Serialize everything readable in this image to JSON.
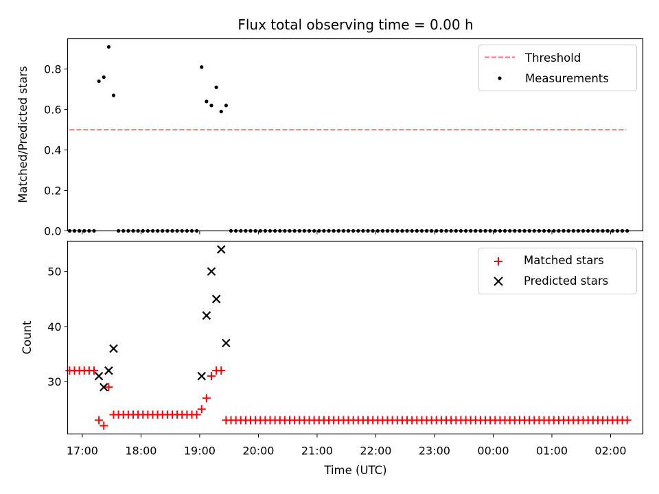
{
  "figure": {
    "title": "Flux total observing time = 0.00 h",
    "xlabel": "Time (UTC)"
  },
  "chart_data": [
    {
      "type": "scatter",
      "ylabel": "Matched/Predicted stars",
      "xlim": [
        "16:45",
        "02:33"
      ],
      "ylim": [
        0,
        0.95
      ],
      "yticks": [
        0.0,
        0.2,
        0.4,
        0.6,
        0.8
      ],
      "ytick_labels": [
        "0.0",
        "0.2",
        "0.4",
        "0.6",
        "0.8"
      ],
      "legend": {
        "position": "top-right"
      },
      "threshold": {
        "name": "Threshold",
        "value": 0.5,
        "x_start": "16:47",
        "x_end": "02:16",
        "color": "#ff7070",
        "style": "dashed"
      },
      "series": [
        {
          "name": "Measurements",
          "marker": "dot",
          "color": "#000000",
          "x": [
            "16:47",
            "16:52",
            "16:57",
            "17:02",
            "17:07",
            "17:12",
            "17:17",
            "17:22",
            "17:27",
            "17:32",
            "17:37",
            "17:42",
            "17:47",
            "17:52",
            "17:57",
            "18:02",
            "18:07",
            "18:12",
            "18:17",
            "18:22",
            "18:27",
            "18:32",
            "18:37",
            "18:42",
            "18:47",
            "18:52",
            "18:57",
            "19:02",
            "19:07",
            "19:12",
            "19:17",
            "19:22",
            "19:27",
            "19:32",
            "19:37",
            "19:42",
            "19:47",
            "19:52",
            "19:57",
            "20:02",
            "20:07",
            "20:12",
            "20:17",
            "20:22",
            "20:27",
            "20:32",
            "20:37",
            "20:42",
            "20:47",
            "20:52",
            "20:57",
            "21:02",
            "21:07",
            "21:12",
            "21:17",
            "21:22",
            "21:27",
            "21:32",
            "21:37",
            "21:42",
            "21:47",
            "21:52",
            "21:57",
            "22:02",
            "22:07",
            "22:12",
            "22:17",
            "22:22",
            "22:27",
            "22:32",
            "22:37",
            "22:42",
            "22:47",
            "22:52",
            "22:57",
            "23:02",
            "23:07",
            "23:12",
            "23:17",
            "23:22",
            "23:27",
            "23:32",
            "23:37",
            "23:42",
            "23:47",
            "23:52",
            "23:57",
            "00:02",
            "00:07",
            "00:12",
            "00:17",
            "00:22",
            "00:27",
            "00:32",
            "00:37",
            "00:42",
            "00:47",
            "00:52",
            "00:57",
            "01:02",
            "01:07",
            "01:12",
            "01:17",
            "01:22",
            "01:27",
            "01:32",
            "01:37",
            "01:42",
            "01:47",
            "01:52",
            "01:57",
            "02:02",
            "02:07",
            "02:12",
            "02:17"
          ],
          "y": [
            0,
            0,
            0,
            0,
            0,
            0,
            0.74,
            0.76,
            0.91,
            0.67,
            0,
            0,
            0,
            0,
            0,
            0,
            0,
            0,
            0,
            0,
            0,
            0,
            0,
            0,
            0,
            0,
            0,
            0.81,
            0.64,
            0.62,
            0.71,
            0.59,
            0.62,
            0,
            0,
            0,
            0,
            0,
            0,
            0,
            0,
            0,
            0,
            0,
            0,
            0,
            0,
            0,
            0,
            0,
            0,
            0,
            0,
            0,
            0,
            0,
            0,
            0,
            0,
            0,
            0,
            0,
            0,
            0,
            0,
            0,
            0,
            0,
            0,
            0,
            0,
            0,
            0,
            0,
            0,
            0,
            0,
            0,
            0,
            0,
            0,
            0,
            0,
            0,
            0,
            0,
            0,
            0,
            0,
            0,
            0,
            0,
            0,
            0,
            0,
            0,
            0,
            0,
            0,
            0,
            0,
            0,
            0,
            0,
            0,
            0,
            0,
            0,
            0,
            0,
            0,
            0,
            0,
            0,
            0
          ]
        }
      ]
    },
    {
      "type": "scatter",
      "ylabel": "Count",
      "xlim": [
        "16:45",
        "02:33"
      ],
      "ylim": [
        20.5,
        55.5
      ],
      "yticks": [
        30,
        40,
        50
      ],
      "ytick_labels": [
        "30",
        "40",
        "50"
      ],
      "xticks": [
        "17:00",
        "18:00",
        "19:00",
        "20:00",
        "21:00",
        "22:00",
        "23:00",
        "00:00",
        "01:00",
        "02:00"
      ],
      "legend": {
        "position": "top-right"
      },
      "series": [
        {
          "name": "Matched stars",
          "marker": "plus",
          "color": "#ff0000",
          "x": [
            "16:47",
            "16:52",
            "16:57",
            "17:02",
            "17:07",
            "17:12",
            "17:17",
            "17:22",
            "17:27",
            "17:32",
            "17:37",
            "17:42",
            "17:47",
            "17:52",
            "17:57",
            "18:02",
            "18:07",
            "18:12",
            "18:17",
            "18:22",
            "18:27",
            "18:32",
            "18:37",
            "18:42",
            "18:47",
            "18:52",
            "18:57",
            "19:02",
            "19:07",
            "19:12",
            "19:17",
            "19:22",
            "19:27",
            "19:32",
            "19:37",
            "19:42",
            "19:47",
            "19:52",
            "19:57",
            "20:02",
            "20:07",
            "20:12",
            "20:17",
            "20:22",
            "20:27",
            "20:32",
            "20:37",
            "20:42",
            "20:47",
            "20:52",
            "20:57",
            "21:02",
            "21:07",
            "21:12",
            "21:17",
            "21:22",
            "21:27",
            "21:32",
            "21:37",
            "21:42",
            "21:47",
            "21:52",
            "21:57",
            "22:02",
            "22:07",
            "22:12",
            "22:17",
            "22:22",
            "22:27",
            "22:32",
            "22:37",
            "22:42",
            "22:47",
            "22:52",
            "22:57",
            "23:02",
            "23:07",
            "23:12",
            "23:17",
            "23:22",
            "23:27",
            "23:32",
            "23:37",
            "23:42",
            "23:47",
            "23:52",
            "23:57",
            "00:02",
            "00:07",
            "00:12",
            "00:17",
            "00:22",
            "00:27",
            "00:32",
            "00:37",
            "00:42",
            "00:47",
            "00:52",
            "00:57",
            "01:02",
            "01:07",
            "01:12",
            "01:17",
            "01:22",
            "01:27",
            "01:32",
            "01:37",
            "01:42",
            "01:47",
            "01:52",
            "01:57",
            "02:02",
            "02:07",
            "02:12",
            "02:17"
          ],
          "y": [
            32,
            32,
            32,
            32,
            32,
            32,
            23,
            22,
            29,
            24,
            24,
            24,
            24,
            24,
            24,
            24,
            24,
            24,
            24,
            24,
            24,
            24,
            24,
            24,
            24,
            24,
            24,
            25,
            27,
            31,
            32,
            32,
            23,
            23,
            23,
            23,
            23,
            23,
            23,
            23,
            23,
            23,
            23,
            23,
            23,
            23,
            23,
            23,
            23,
            23,
            23,
            23,
            23,
            23,
            23,
            23,
            23,
            23,
            23,
            23,
            23,
            23,
            23,
            23,
            23,
            23,
            23,
            23,
            23,
            23,
            23,
            23,
            23,
            23,
            23,
            23,
            23,
            23,
            23,
            23,
            23,
            23,
            23,
            23,
            23,
            23,
            23,
            23,
            23,
            23,
            23,
            23,
            23,
            23,
            23,
            23,
            23,
            23,
            23,
            23,
            23,
            23,
            23,
            23,
            23,
            23,
            23,
            23,
            23,
            23,
            23,
            23,
            23,
            23,
            23
          ]
        },
        {
          "name": "Predicted stars",
          "marker": "x",
          "color": "#000000",
          "x": [
            "17:17",
            "17:22",
            "17:27",
            "17:32",
            "19:02",
            "19:07",
            "19:12",
            "19:17",
            "19:22",
            "19:27"
          ],
          "y": [
            31,
            29,
            32,
            36,
            31,
            42,
            50,
            45,
            54,
            37
          ]
        }
      ]
    }
  ]
}
